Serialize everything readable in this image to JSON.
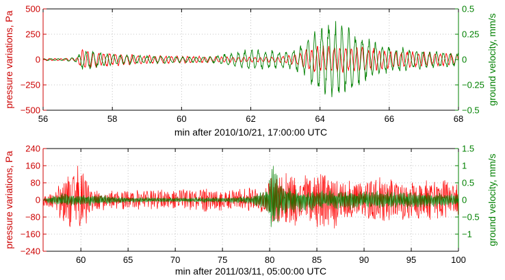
{
  "colors": {
    "pressure": "#ff0000",
    "velocity": "#008000",
    "pressure_label": "#cc0000",
    "velocity_label": "#008000"
  },
  "chart_data": [
    {
      "type": "line",
      "xlabel": "min after 2010/10/21, 17:00:00 UTC",
      "ylabel_left": "pressure variations, Pa",
      "ylabel_right": "ground velocity, mm/s",
      "xlim": [
        56,
        68
      ],
      "ylim_left": [
        -500,
        500
      ],
      "ylim_right": [
        -0.5,
        0.5
      ],
      "xticks": [
        56,
        58,
        60,
        62,
        64,
        66,
        68
      ],
      "xtick_labels": [
        "56",
        "58",
        "60",
        "62",
        "64",
        "66",
        "68"
      ],
      "yticks_left": [
        -500,
        -250,
        0,
        250,
        500
      ],
      "ytick_labels_left": [
        "−500",
        "−250",
        "0",
        "250",
        "500"
      ],
      "yticks_right": [
        -0.5,
        -0.25,
        0,
        0.25,
        0.5
      ],
      "ytick_labels_right": [
        "−0.5",
        "−0.25",
        "0",
        "0.25",
        "0.5"
      ],
      "grid": true,
      "series": [
        {
          "axis": "left",
          "envelope": {
            "x": [
              56,
              56.5,
              57,
              57.1,
              57.4,
              57.7,
              58,
              58.5,
              59,
              59.5,
              60,
              60.5,
              61,
              61.5,
              62,
              62.5,
              63,
              63.5,
              63.8,
              64.2,
              64.6,
              65,
              65.5,
              66,
              66.5,
              67,
              67.5,
              68
            ],
            "amp": [
              12,
              12,
              20,
              110,
              100,
              85,
              70,
              55,
              45,
              40,
              38,
              35,
              30,
              30,
              28,
              28,
              40,
              80,
              150,
              160,
              140,
              130,
              120,
              100,
              90,
              80,
              70,
              60
            ]
          },
          "period": 0.16
        },
        {
          "axis": "right",
          "envelope": {
            "x": [
              56,
              56.5,
              57,
              57.1,
              57.4,
              57.7,
              58,
              58.5,
              59,
              59.5,
              60,
              60.5,
              61,
              61.5,
              62,
              62.5,
              63,
              63.5,
              63.8,
              64.2,
              64.6,
              65,
              65.5,
              66,
              66.5,
              67,
              67.5,
              68
            ],
            "amp": [
              0.01,
              0.01,
              0.03,
              0.1,
              0.1,
              0.07,
              0.06,
              0.05,
              0.04,
              0.04,
              0.03,
              0.03,
              0.04,
              0.08,
              0.11,
              0.1,
              0.09,
              0.15,
              0.3,
              0.4,
              0.41,
              0.3,
              0.2,
              0.15,
              0.12,
              0.1,
              0.08,
              0.07
            ]
          },
          "period": 0.2
        }
      ]
    },
    {
      "type": "line",
      "xlabel": "min after 2011/03/11, 05:00:00 UTC",
      "ylabel_left": "pressure variations, Pa",
      "ylabel_right": "ground velocity, mm/s",
      "xlim": [
        56,
        100
      ],
      "ylim_left": [
        -240,
        240
      ],
      "ylim_right": [
        -1.5,
        1.5
      ],
      "xticks": [
        60,
        65,
        70,
        75,
        80,
        85,
        90,
        95,
        100
      ],
      "xtick_labels": [
        "60",
        "65",
        "70",
        "75",
        "80",
        "85",
        "90",
        "95",
        "100"
      ],
      "yticks_left": [
        -240,
        -160,
        -80,
        0,
        80,
        160,
        240
      ],
      "ytick_labels_left": [
        "−240",
        "−160",
        "−80",
        "0",
        "80",
        "160",
        "240"
      ],
      "yticks_right": [
        -1,
        -0.5,
        0,
        0.5,
        1,
        1.5
      ],
      "ytick_labels_right": [
        "−1",
        "−0.5",
        "0",
        "0.5",
        "1",
        "1.5"
      ],
      "grid": true,
      "series": [
        {
          "axis": "left",
          "envelope": {
            "x": [
              56,
              57,
              58,
              59,
              59.5,
              60,
              60.5,
              61,
              62,
              65,
              70,
              73,
              75,
              77,
              79,
              80,
              81,
              83,
              85,
              87,
              88,
              90,
              92,
              95,
              97,
              99,
              100
            ],
            "amp": [
              30,
              40,
              100,
              140,
              170,
              150,
              120,
              70,
              50,
              45,
              50,
              60,
              50,
              55,
              60,
              100,
              140,
              120,
              130,
              140,
              100,
              90,
              110,
              90,
              100,
              100,
              80
            ]
          },
          "period": 0.035
        },
        {
          "axis": "right",
          "envelope": {
            "x": [
              56,
              58,
              60,
              62,
              65,
              70,
              75,
              78,
              79.8,
              80.1,
              80.5,
              81,
              82,
              85,
              90,
              95,
              100
            ],
            "amp": [
              0.05,
              0.2,
              0.2,
              0.15,
              0.08,
              0.08,
              0.08,
              0.12,
              0.4,
              1.2,
              1.1,
              0.6,
              0.4,
              0.3,
              0.3,
              0.25,
              0.2
            ]
          },
          "period": 0.14
        }
      ]
    }
  ]
}
